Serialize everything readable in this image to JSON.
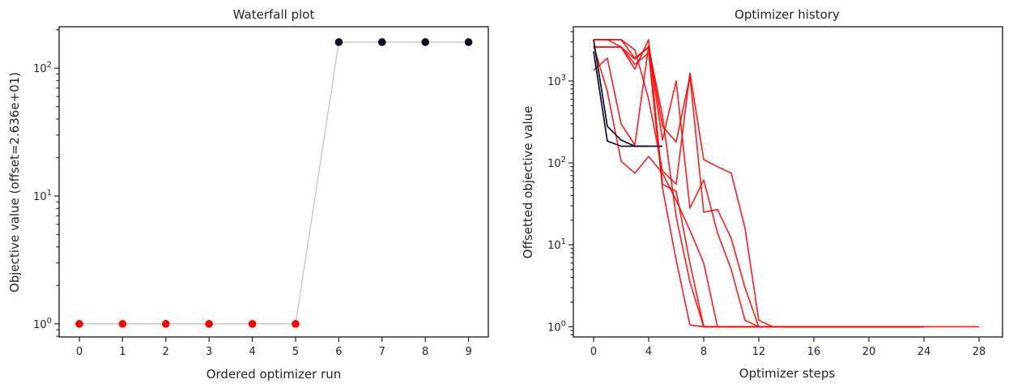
{
  "chart_data": [
    {
      "type": "line",
      "title": "Waterfall plot",
      "xlabel": "Ordered optimizer run",
      "ylabel": "Objective value (offset=2.636e+01)",
      "yscale": "log",
      "x_ticks": [
        "0",
        "1",
        "2",
        "3",
        "4",
        "5",
        "6",
        "7",
        "8",
        "9"
      ],
      "y_ticks": [
        {
          "base": "10",
          "exp": "0"
        },
        {
          "base": "10",
          "exp": "1"
        },
        {
          "base": "10",
          "exp": "2"
        }
      ],
      "x": [
        0,
        1,
        2,
        3,
        4,
        5,
        6,
        7,
        8,
        9
      ],
      "values": [
        1,
        1,
        1,
        1,
        1,
        1,
        160,
        160,
        160,
        160
      ],
      "point_colors": [
        "#ff0000",
        "#ff0000",
        "#ff0000",
        "#ff0000",
        "#ff0000",
        "#ff0000",
        "#0b0b2a",
        "#0b0b2a",
        "#0b0b2a",
        "#0b0b2a"
      ],
      "line_color": "#cccccc",
      "grid": false
    },
    {
      "type": "line",
      "title": "Optimizer history",
      "xlabel": "Optimizer steps",
      "ylabel": "Offsetted objective value",
      "yscale": "log",
      "x_ticks": [
        "0",
        "4",
        "8",
        "12",
        "16",
        "20",
        "24",
        "28"
      ],
      "y_ticks": [
        {
          "base": "10",
          "exp": "0"
        },
        {
          "base": "10",
          "exp": "1"
        },
        {
          "base": "10",
          "exp": "2"
        },
        {
          "base": "10",
          "exp": "3"
        }
      ],
      "grid": false,
      "series": [
        {
          "color": "#ff0000",
          "points": [
            [
              0,
              1350
            ],
            [
              1,
              1900
            ],
            [
              2,
              300
            ],
            [
              3,
              165
            ],
            [
              4,
              2700
            ],
            [
              5,
              280
            ],
            [
              6,
              180
            ],
            [
              7,
              1150
            ],
            [
              8,
              25
            ],
            [
              9,
              27
            ],
            [
              10,
              12
            ],
            [
              11,
              3
            ],
            [
              12,
              1
            ],
            [
              24,
              1
            ]
          ]
        },
        {
          "color": "#ff0000",
          "points": [
            [
              0,
              2700
            ],
            [
              1,
              750
            ],
            [
              2,
              105
            ],
            [
              3,
              75
            ],
            [
              4,
              120
            ],
            [
              5,
              75
            ],
            [
              6,
              35
            ],
            [
              7,
              15
            ],
            [
              8,
              6
            ],
            [
              9,
              1
            ],
            [
              24,
              1
            ]
          ]
        },
        {
          "color": "#ff0000",
          "points": [
            [
              0,
              3200
            ],
            [
              1,
              3200
            ],
            [
              2,
              2600
            ],
            [
              3,
              1400
            ],
            [
              4,
              3200
            ],
            [
              5,
              55
            ],
            [
              6,
              45
            ],
            [
              7,
              6
            ],
            [
              8,
              1
            ],
            [
              28,
              1
            ]
          ]
        },
        {
          "color": "#ff0000",
          "points": [
            [
              0,
              2600
            ],
            [
              1,
              2600
            ],
            [
              2,
              2600
            ],
            [
              3,
              1850
            ],
            [
              4,
              2600
            ],
            [
              5,
              380
            ],
            [
              6,
              22
            ],
            [
              7,
              3.5
            ],
            [
              8,
              1
            ],
            [
              24,
              1
            ]
          ]
        },
        {
          "color": "#ff0000",
          "points": [
            [
              0,
              2600
            ],
            [
              1,
              2600
            ],
            [
              2,
              2600
            ],
            [
              3,
              1600
            ],
            [
              4,
              2200
            ],
            [
              5,
              50
            ],
            [
              6,
              6.5
            ],
            [
              7,
              1.05
            ],
            [
              8,
              1
            ],
            [
              24,
              1
            ]
          ]
        },
        {
          "color": "#ff0000",
          "points": [
            [
              0,
              3200
            ],
            [
              1,
              3200
            ],
            [
              2,
              3200
            ],
            [
              3,
              2400
            ],
            [
              4,
              600
            ],
            [
              5,
              80
            ],
            [
              6,
              55
            ],
            [
              7,
              1250
            ],
            [
              8,
              110
            ],
            [
              9,
              90
            ],
            [
              10,
              75
            ],
            [
              11,
              16
            ],
            [
              12,
              1.2
            ],
            [
              13,
              1
            ],
            [
              24,
              1
            ]
          ]
        },
        {
          "color": "#ff0000",
          "points": [
            [
              0,
              3200
            ],
            [
              1,
              3200
            ],
            [
              2,
              3200
            ],
            [
              3,
              1900
            ],
            [
              4,
              2600
            ],
            [
              5,
              190
            ],
            [
              6,
              1000
            ],
            [
              7,
              28
            ],
            [
              8,
              62
            ],
            [
              9,
              14
            ],
            [
              10,
              5
            ],
            [
              11,
              1.2
            ],
            [
              12,
              1
            ],
            [
              24,
              1
            ]
          ]
        },
        {
          "color": "#0b0b2a",
          "points": [
            [
              0,
              3200
            ],
            [
              1,
              280
            ],
            [
              2,
              190
            ],
            [
              3,
              160
            ],
            [
              4,
              160
            ],
            [
              5,
              160
            ]
          ]
        },
        {
          "color": "#0b0b2a",
          "points": [
            [
              0,
              2300
            ],
            [
              1,
              185
            ],
            [
              2,
              160
            ],
            [
              3,
              160
            ],
            [
              4,
              160
            ]
          ]
        }
      ]
    }
  ]
}
